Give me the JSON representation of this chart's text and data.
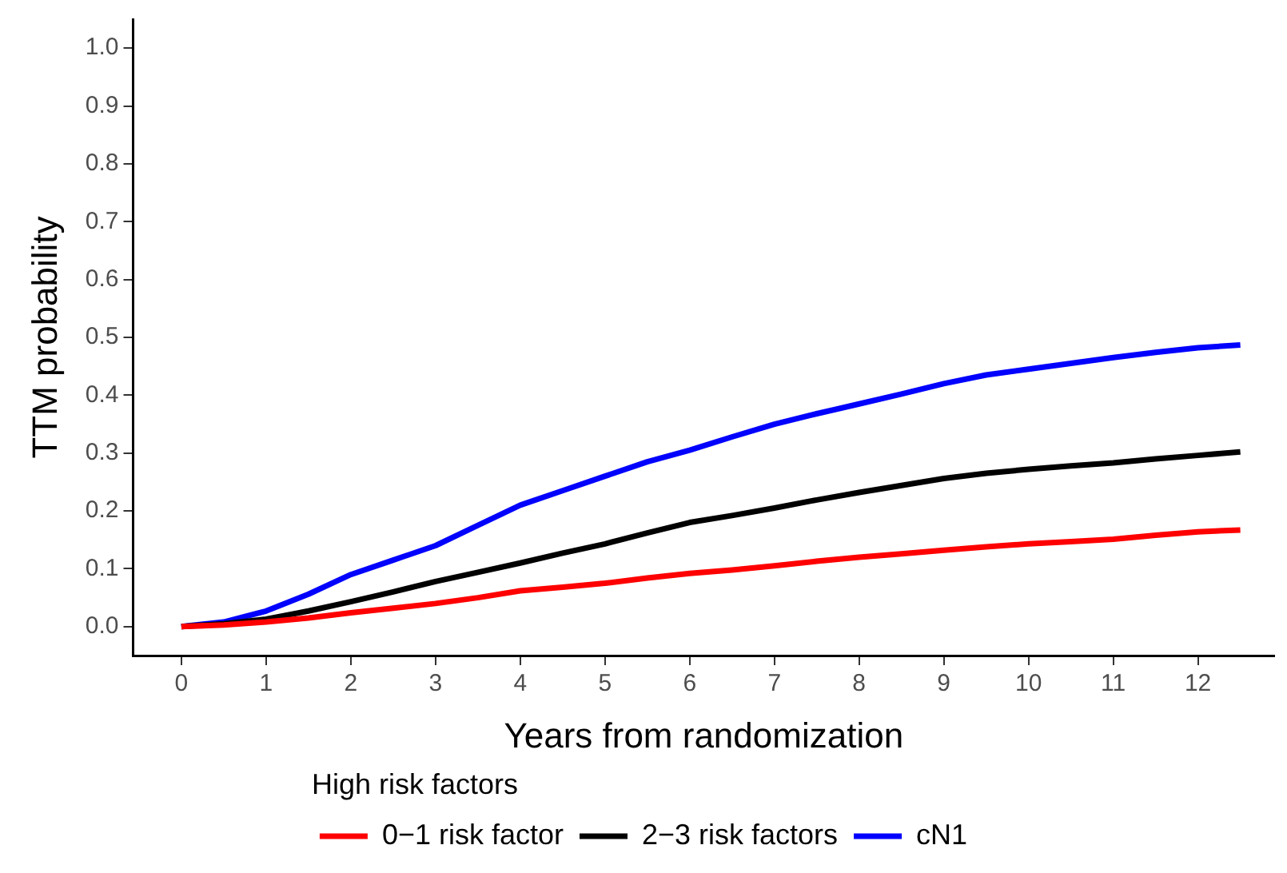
{
  "chart_data": {
    "type": "line",
    "xlabel": "Years from randomization",
    "ylabel": "TTM probability",
    "legend_title": "High risk factors",
    "legend": "bottom",
    "grid": false,
    "marker": "none",
    "line_style": "solid",
    "xlim": [
      -0.57,
      12.9
    ],
    "ylim": [
      -0.05,
      1.05
    ],
    "xticks": [
      0,
      1,
      2,
      3,
      4,
      5,
      6,
      7,
      8,
      9,
      10,
      11,
      12
    ],
    "yticks": [
      {
        "value": 0,
        "label": "0.0"
      },
      {
        "value": 0.1,
        "label": "0.1"
      },
      {
        "value": 0.2,
        "label": "0.2"
      },
      {
        "value": 0.3,
        "label": "0.3"
      },
      {
        "value": 0.4,
        "label": "0.4"
      },
      {
        "value": 0.5,
        "label": "0.5"
      },
      {
        "value": 0.6,
        "label": "0.6"
      },
      {
        "value": 0.7,
        "label": "0.7"
      },
      {
        "value": 0.8,
        "label": "0.8"
      },
      {
        "value": 0.9,
        "label": "0.9"
      },
      {
        "value": 1,
        "label": "1.0"
      }
    ],
    "x": [
      0,
      0.5,
      1,
      1.5,
      2,
      2.5,
      3,
      3.5,
      4,
      4.5,
      5,
      5.5,
      6,
      6.5,
      7,
      7.5,
      8,
      8.5,
      9,
      9.5,
      10,
      10.5,
      11,
      11.5,
      12,
      12.5
    ],
    "series": [
      {
        "name": "0−1 risk factor",
        "color": "#ff0000",
        "values": [
          0,
          0.003,
          0.008,
          0.015,
          0.024,
          0.032,
          0.04,
          0.05,
          0.062,
          0.068,
          0.075,
          0.084,
          0.092,
          0.098,
          0.105,
          0.113,
          0.12,
          0.126,
          0.132,
          0.138,
          0.143,
          0.147,
          0.151,
          0.158,
          0.164,
          0.167
        ]
      },
      {
        "name": "2−3 risk factors",
        "color": "#000000",
        "values": [
          0,
          0.005,
          0.013,
          0.027,
          0.043,
          0.06,
          0.078,
          0.094,
          0.11,
          0.127,
          0.143,
          0.162,
          0.18,
          0.192,
          0.205,
          0.219,
          0.232,
          0.244,
          0.256,
          0.265,
          0.272,
          0.278,
          0.283,
          0.29,
          0.296,
          0.302
        ]
      },
      {
        "name": "cN1",
        "color": "#0000ff",
        "values": [
          0,
          0.008,
          0.027,
          0.056,
          0.09,
          0.115,
          0.14,
          0.175,
          0.21,
          0.235,
          0.26,
          0.285,
          0.305,
          0.328,
          0.35,
          0.368,
          0.385,
          0.402,
          0.42,
          0.435,
          0.445,
          0.455,
          0.465,
          0.474,
          0.482,
          0.487
        ]
      }
    ]
  }
}
